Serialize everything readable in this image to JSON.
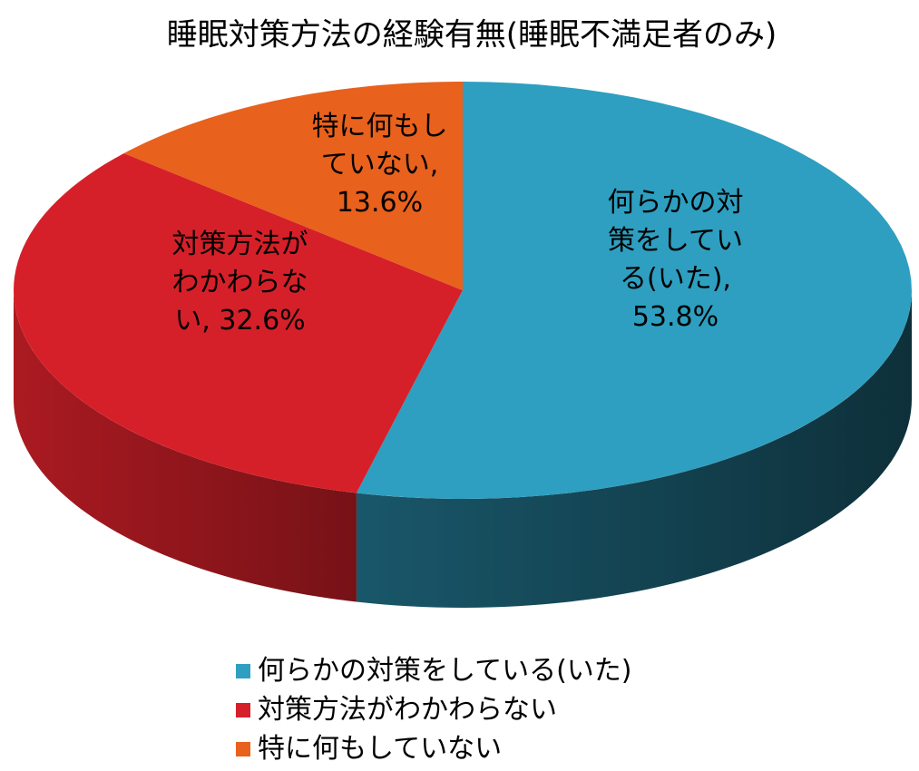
{
  "chart_data": {
    "type": "pie",
    "title": "睡眠対策方法の経験有無(睡眠不満足者のみ)",
    "categories": [
      "何らかの対策をしている(いた)",
      "対策方法がわかわらない",
      "特に何もしていない"
    ],
    "values": [
      53.8,
      32.6,
      13.6
    ],
    "value_labels": [
      "何らかの対策をしている(いた), 53.8%",
      "対策方法がわかわらない, 32.6%",
      "特に何もしていない, 13.6%"
    ],
    "colors": [
      "#2e9fc0",
      "#d62029",
      "#e8611d"
    ],
    "legend": "bottom"
  }
}
